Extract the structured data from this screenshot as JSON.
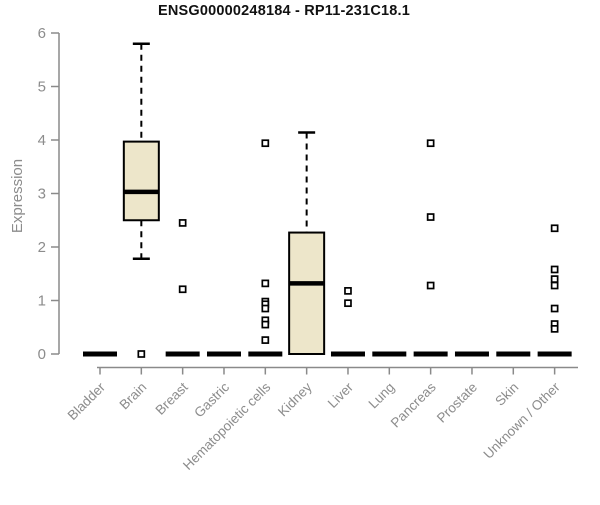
{
  "chart_data": {
    "type": "boxplot",
    "title": "ENSG00000248184 - RP11-231C18.1",
    "ylabel": "Expression",
    "xlabel": "",
    "ylim": [
      0,
      6
    ],
    "yticks": [
      0,
      1,
      2,
      3,
      4,
      5,
      6
    ],
    "grid": false,
    "legend": false,
    "categories": [
      "Bladder",
      "Brain",
      "Breast",
      "Gastric",
      "Hematopoietic cells",
      "Kidney",
      "Liver",
      "Lung",
      "Pancreas",
      "Prostate",
      "Skin",
      "Unknown / Other"
    ],
    "series": [
      {
        "name": "Bladder",
        "min": 0,
        "q1": 0,
        "median": 0,
        "q3": 0,
        "max": 0,
        "outliers": []
      },
      {
        "name": "Brain",
        "min": 1.78,
        "q1": 2.5,
        "median": 3.03,
        "q3": 3.97,
        "max": 5.8,
        "outliers": [
          0
        ]
      },
      {
        "name": "Breast",
        "min": 0,
        "q1": 0,
        "median": 0,
        "q3": 0,
        "max": 0,
        "outliers": [
          2.45,
          1.21
        ]
      },
      {
        "name": "Gastric",
        "min": 0,
        "q1": 0,
        "median": 0,
        "q3": 0,
        "max": 0,
        "outliers": []
      },
      {
        "name": "Hematopoietic cells",
        "min": 0,
        "q1": 0,
        "median": 0,
        "q3": 0,
        "max": 0,
        "outliers": [
          3.94,
          1.32,
          0.98,
          0.93,
          0.85,
          0.63,
          0.55,
          0.26
        ]
      },
      {
        "name": "Kidney",
        "min": 0,
        "q1": 0,
        "median": 1.32,
        "q3": 2.27,
        "max": 4.14,
        "outliers": []
      },
      {
        "name": "Liver",
        "min": 0,
        "q1": 0,
        "median": 0,
        "q3": 0,
        "max": 0,
        "outliers": [
          1.18,
          0.95
        ]
      },
      {
        "name": "Lung",
        "min": 0,
        "q1": 0,
        "median": 0,
        "q3": 0,
        "max": 0,
        "outliers": []
      },
      {
        "name": "Pancreas",
        "min": 0,
        "q1": 0,
        "median": 0,
        "q3": 0,
        "max": 0,
        "outliers": [
          3.94,
          2.56,
          1.28
        ]
      },
      {
        "name": "Prostate",
        "min": 0,
        "q1": 0,
        "median": 0,
        "q3": 0,
        "max": 0,
        "outliers": []
      },
      {
        "name": "Skin",
        "min": 0,
        "q1": 0,
        "median": 0,
        "q3": 0,
        "max": 0,
        "outliers": []
      },
      {
        "name": "Unknown / Other",
        "min": 0,
        "q1": 0,
        "median": 0,
        "q3": 0,
        "max": 0,
        "outliers": [
          2.35,
          1.58,
          1.4,
          1.28,
          0.85,
          0.56,
          0.47
        ]
      }
    ],
    "colors": {
      "box_fill": "#EDE6CA",
      "box_stroke": "#000000",
      "outlier_fill": "#FFFFFF",
      "axis": "#8A8A8A",
      "tick_label": "#8C8C8C",
      "title": "#111111",
      "background": "#FFFFFF"
    }
  }
}
